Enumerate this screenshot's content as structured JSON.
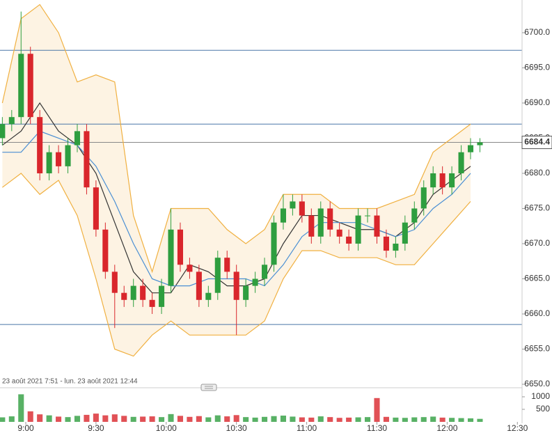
{
  "chart_data": {
    "type": "candlestick",
    "date_range": "23 août 2021 7:51 - lun. 23 août 2021 12:44",
    "x": [
      530,
      534,
      538,
      542,
      546,
      550,
      554,
      558,
      562,
      566,
      570,
      574,
      578,
      582,
      586,
      590,
      594,
      598,
      602,
      606,
      610,
      614,
      618,
      622,
      626,
      630,
      634,
      638,
      642,
      646,
      650,
      654,
      658,
      662,
      666,
      670,
      674,
      678,
      682,
      686,
      690,
      694,
      698,
      702,
      706,
      710,
      714,
      718,
      722,
      726,
      730,
      734
    ],
    "open": [
      6685,
      6687,
      6688,
      6697,
      6688,
      6680,
      6683,
      6681,
      6684,
      6686,
      6678,
      6672,
      6666,
      6663,
      6662,
      6664,
      6662,
      6661,
      6664,
      6672,
      6667,
      6666,
      6662,
      6663,
      6668,
      6666,
      6662,
      6664,
      6665,
      6667,
      6673,
      6675,
      6676,
      6674,
      6671,
      6675,
      6672,
      6671,
      6670,
      6674,
      6674,
      6671,
      6669,
      6670,
      6673,
      6675,
      6678,
      6680,
      6678,
      6680,
      6683,
      6684
    ],
    "high": [
      6688,
      6689,
      6703,
      6698,
      6689,
      6684,
      6684,
      6685,
      6687,
      6687,
      6679,
      6673,
      6667,
      6664,
      6665,
      6665,
      6663,
      6665,
      6675,
      6673,
      6668,
      6667,
      6664,
      6669,
      6669,
      6667,
      6665,
      6666,
      6668,
      6674,
      6677,
      6677,
      6677,
      6675,
      6676,
      6676,
      6673,
      6672,
      6675,
      6675,
      6675,
      6672,
      6671,
      6674,
      6676,
      6679,
      6681,
      6681,
      6681,
      6684,
      6685,
      6685
    ],
    "low": [
      6684,
      6686,
      6687,
      6687,
      6679,
      6679,
      6680,
      6680,
      6683,
      6677,
      6671,
      6665,
      6658,
      6661,
      6661,
      6661,
      6660,
      6660,
      6663,
      6666,
      6665,
      6661,
      6661,
      6662,
      6665,
      6657,
      6661,
      6663,
      6664,
      6666,
      6672,
      6674,
      6673,
      6670,
      6670,
      6671,
      6670,
      6669,
      6669,
      6673,
      6670,
      6668,
      6668,
      6669,
      6672,
      6674,
      6677,
      6677,
      6677,
      6679,
      6682,
      6683
    ],
    "close": [
      6687,
      6688,
      6697,
      6688,
      6680,
      6683,
      6681,
      6684,
      6686,
      6678,
      6672,
      6666,
      6663,
      6662,
      6664,
      6662,
      6661,
      6664,
      6672,
      6667,
      6666,
      6662,
      6663,
      6668,
      6666,
      6662,
      6664,
      6665,
      6667,
      6673,
      6675,
      6676,
      6674,
      6671,
      6675,
      6672,
      6671,
      6670,
      6674,
      6674,
      6671,
      6669,
      6670,
      6673,
      6675,
      6678,
      6680,
      6678,
      6680,
      6683,
      6684,
      6684.4
    ],
    "volume": [
      180,
      220,
      1100,
      420,
      300,
      260,
      210,
      190,
      240,
      280,
      330,
      260,
      300,
      240,
      200,
      210,
      220,
      190,
      310,
      240,
      200,
      230,
      180,
      260,
      220,
      270,
      190,
      170,
      200,
      230,
      250,
      210,
      180,
      170,
      220,
      190,
      160,
      170,
      180,
      190,
      950,
      200,
      170,
      160,
      180,
      190,
      210,
      170,
      160,
      150,
      140,
      120
    ],
    "up_color": "#2e9e3f",
    "down_color": "#d9262c",
    "overlay_x": [
      530,
      538,
      546,
      554,
      562,
      570,
      578,
      586,
      594,
      602,
      610,
      618,
      626,
      634,
      642,
      650,
      658,
      666,
      674,
      682,
      690,
      698,
      706,
      714,
      722,
      730
    ],
    "overlays": [
      {
        "color": "#f0b040",
        "values": [
          6690,
          6702,
          6704,
          6700,
          6693,
          6694,
          6693,
          6674,
          6666,
          6675,
          6675,
          6675,
          6672,
          6670,
          6672,
          6677,
          6677,
          6677,
          6675,
          6675,
          6675,
          6676,
          6677,
          6683,
          6685,
          6687
        ]
      },
      {
        "color": "#f0b040",
        "values": [
          6678,
          6680,
          6677,
          6679,
          6674,
          6665,
          6655,
          6654,
          6657,
          6659,
          6657,
          6657,
          6657,
          6657,
          6659,
          6665,
          6669,
          6669,
          6668,
          6668,
          6668,
          6667,
          6667,
          6670,
          6673,
          6676
        ]
      },
      {
        "color": "#333333",
        "values": [
          6684,
          6686,
          6690,
          6686,
          6684,
          6680,
          6673,
          6666,
          6663,
          6663,
          6667,
          6666,
          6664,
          6664,
          6665,
          6670,
          6674,
          6674,
          6673,
          6672,
          6672,
          6671,
          6673,
          6677,
          6679,
          6681
        ]
      },
      {
        "color": "#4a8fd4",
        "values": [
          6683,
          6683,
          6686,
          6685,
          6684,
          6681,
          6676,
          6670,
          6665,
          6664,
          6664,
          6665,
          6665,
          6665,
          6664,
          6667,
          6671,
          6673,
          6673,
          6673,
          6672,
          6671,
          6672,
          6675,
          6677,
          6680
        ]
      }
    ],
    "band_fill": "#fdf3e3",
    "levels": [
      6697.5,
      6687,
      6658.5
    ],
    "level_color": "#4a76a8",
    "last_price": 6684.4,
    "xlim": [
      529,
      752
    ],
    "xticks": [
      {
        "value": 540,
        "label": "9:00"
      },
      {
        "value": 570,
        "label": "9:30"
      },
      {
        "value": 600,
        "label": "10:00"
      },
      {
        "value": 630,
        "label": "10:30"
      },
      {
        "value": 660,
        "label": "11:00"
      },
      {
        "value": 690,
        "label": "11:30"
      },
      {
        "value": 720,
        "label": "12:00"
      },
      {
        "value": 750,
        "label": "12:30"
      }
    ],
    "ylim": [
      6650,
      6704.65
    ],
    "yticks": [
      {
        "value": 6650,
        "label": "6650.0"
      },
      {
        "value": 6655,
        "label": "6655.0"
      },
      {
        "value": 6660,
        "label": "6660.0"
      },
      {
        "value": 6665,
        "label": "6665.0"
      },
      {
        "value": 6670,
        "label": "6670.0"
      },
      {
        "value": 6675,
        "label": "6675.0"
      },
      {
        "value": 6680,
        "label": "6680.0"
      },
      {
        "value": 6685,
        "label": "6685.0"
      },
      {
        "value": 6690,
        "label": "6690.0"
      },
      {
        "value": 6695,
        "label": "6695.0"
      },
      {
        "value": 6700,
        "label": "6700.0"
      }
    ],
    "y2lim": [
      0,
      1250
    ],
    "y2ticks": [
      500,
      1000
    ]
  }
}
